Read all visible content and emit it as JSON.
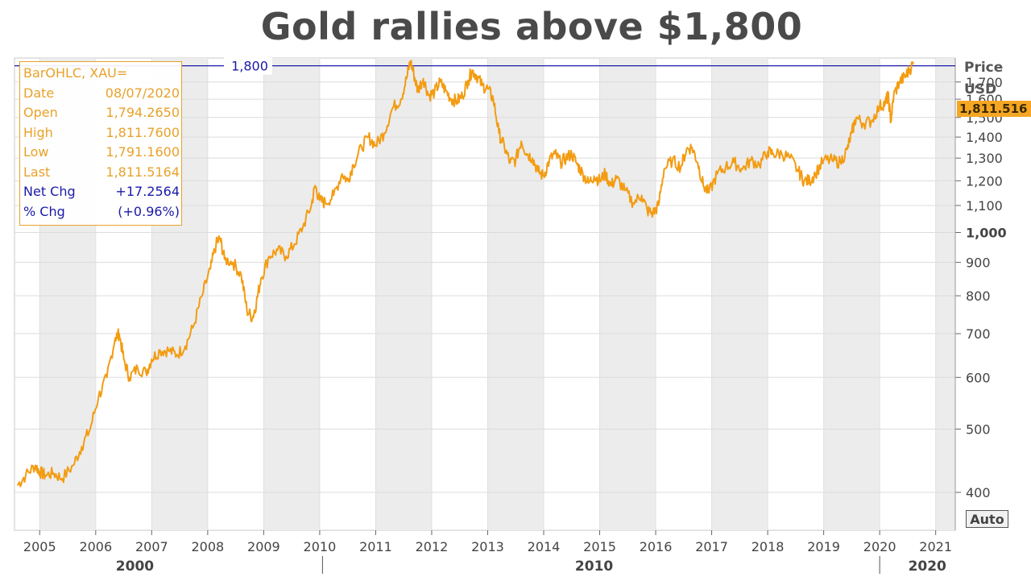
{
  "title": "Gold rallies above $1,800",
  "infobox": {
    "rows": [
      {
        "label": "BarOHLC, XAU=",
        "value": ""
      },
      {
        "label": "Date",
        "value": "08/07/2020"
      },
      {
        "label": "Open",
        "value": "1,794.2650"
      },
      {
        "label": "High",
        "value": "1,811.7600"
      },
      {
        "label": "Low",
        "value": "1,791.1600"
      },
      {
        "label": "Last",
        "value": "1,811.5164"
      },
      {
        "label": "Net Chg",
        "value": "+17.2564"
      },
      {
        "label": "% Chg",
        "value": "(+0.96%)"
      }
    ]
  },
  "axis": {
    "price_label": "Price",
    "currency_label": "USD",
    "last_value": "1,811.516",
    "auto_button": "Auto"
  },
  "reference_line": {
    "value": 1800,
    "label": "1,800",
    "color": "#1a1aa8"
  },
  "colors": {
    "series": "#f39c12",
    "grid": "#e6e6e6",
    "band": "#ececec"
  },
  "chart_data": {
    "type": "line",
    "title": "Gold rallies above $1,800",
    "ylabel": "Price USD",
    "xlabel": "",
    "ylim": [
      350,
      1850
    ],
    "xlim": [
      2004.55,
      2021.35
    ],
    "y_scale": "log",
    "y_ticks": [
      400,
      500,
      600,
      700,
      800,
      900,
      1000,
      1100,
      1200,
      1300,
      1400,
      1500,
      1600,
      1700
    ],
    "y_tick_labels": [
      "400",
      "500",
      "600",
      "700",
      "800",
      "900",
      "1,000",
      "1,100",
      "1,200",
      "1,300",
      "1,400",
      "1,500",
      "1,600",
      "1,700"
    ],
    "x_ticks": [
      2005,
      2006,
      2007,
      2008,
      2009,
      2010,
      2011,
      2012,
      2013,
      2014,
      2015,
      2016,
      2017,
      2018,
      2019,
      2020,
      2021
    ],
    "x_tick_labels": [
      "2005",
      "2006",
      "2007",
      "2008",
      "2009",
      "2010",
      "2011",
      "2012",
      "2013",
      "2014",
      "2015",
      "2016",
      "2017",
      "2018",
      "2019",
      "2020",
      "2021"
    ],
    "decades": [
      {
        "label": "2000",
        "center": 2006.7
      },
      {
        "label": "2010",
        "center": 2014.9
      },
      {
        "label": "2020",
        "center": 2020.85
      }
    ],
    "decade_separators": [
      2010.05,
      2020.0
    ],
    "grid": true,
    "legend": "none",
    "series": [
      {
        "color": "#f39c12",
        "x": [
          2004.6,
          2004.75,
          2004.92,
          2005.0,
          2005.1,
          2005.25,
          2005.4,
          2005.6,
          2005.75,
          2005.9,
          2006.05,
          2006.2,
          2006.35,
          2006.42,
          2006.5,
          2006.6,
          2006.75,
          2006.9,
          2007.0,
          2007.15,
          2007.3,
          2007.45,
          2007.6,
          2007.75,
          2007.9,
          2008.05,
          2008.15,
          2008.22,
          2008.3,
          2008.45,
          2008.6,
          2008.7,
          2008.8,
          2008.87,
          2008.95,
          2009.1,
          2009.25,
          2009.4,
          2009.55,
          2009.7,
          2009.85,
          2009.92,
          2010.0,
          2010.1,
          2010.25,
          2010.4,
          2010.5,
          2010.6,
          2010.75,
          2010.87,
          2011.0,
          2011.15,
          2011.3,
          2011.45,
          2011.55,
          2011.62,
          2011.68,
          2011.75,
          2011.85,
          2011.95,
          2012.05,
          2012.15,
          2012.25,
          2012.35,
          2012.45,
          2012.55,
          2012.65,
          2012.72,
          2012.8,
          2012.9,
          2013.0,
          2013.1,
          2013.2,
          2013.3,
          2013.4,
          2013.5,
          2013.6,
          2013.7,
          2013.8,
          2013.9,
          2014.0,
          2014.1,
          2014.2,
          2014.3,
          2014.4,
          2014.5,
          2014.6,
          2014.7,
          2014.8,
          2014.9,
          2015.0,
          2015.1,
          2015.2,
          2015.3,
          2015.45,
          2015.6,
          2015.75,
          2015.85,
          2015.95,
          2016.05,
          2016.15,
          2016.3,
          2016.45,
          2016.55,
          2016.65,
          2016.75,
          2016.85,
          2016.95,
          2017.1,
          2017.25,
          2017.4,
          2017.55,
          2017.7,
          2017.85,
          2018.0,
          2018.1,
          2018.25,
          2018.4,
          2018.55,
          2018.65,
          2018.75,
          2018.85,
          2019.0,
          2019.15,
          2019.3,
          2019.42,
          2019.5,
          2019.58,
          2019.7,
          2019.85,
          2020.0,
          2020.1,
          2020.15,
          2020.2,
          2020.25,
          2020.35,
          2020.45,
          2020.52,
          2020.6
        ],
        "y": [
          410,
          425,
          440,
          430,
          425,
          428,
          420,
          440,
          470,
          500,
          560,
          600,
          690,
          700,
          640,
          600,
          620,
          610,
          640,
          660,
          660,
          650,
          670,
          720,
          800,
          880,
          960,
          980,
          910,
          900,
          860,
          760,
          740,
          780,
          850,
          920,
          940,
          920,
          960,
          1020,
          1100,
          1180,
          1120,
          1110,
          1140,
          1230,
          1200,
          1270,
          1350,
          1400,
          1360,
          1420,
          1550,
          1600,
          1720,
          1830,
          1750,
          1650,
          1720,
          1620,
          1640,
          1700,
          1650,
          1600,
          1590,
          1620,
          1710,
          1770,
          1740,
          1680,
          1660,
          1600,
          1420,
          1350,
          1280,
          1290,
          1380,
          1320,
          1300,
          1240,
          1220,
          1290,
          1320,
          1280,
          1300,
          1320,
          1270,
          1230,
          1190,
          1220,
          1200,
          1230,
          1180,
          1210,
          1160,
          1110,
          1140,
          1080,
          1070,
          1100,
          1250,
          1290,
          1260,
          1340,
          1350,
          1280,
          1180,
          1150,
          1230,
          1260,
          1280,
          1250,
          1290,
          1270,
          1330,
          1320,
          1320,
          1300,
          1240,
          1200,
          1200,
          1230,
          1290,
          1290,
          1280,
          1340,
          1420,
          1500,
          1470,
          1480,
          1560,
          1580,
          1620,
          1480,
          1620,
          1700,
          1730,
          1770,
          1811.5
        ]
      }
    ]
  }
}
